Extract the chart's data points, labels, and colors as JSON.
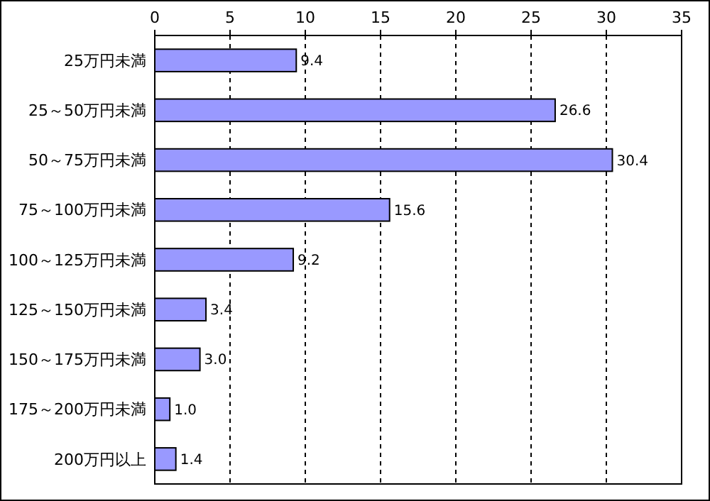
{
  "chart_data": {
    "type": "bar",
    "orientation": "horizontal",
    "categories": [
      "25万円未満",
      "25～50万円未満",
      "50～75万円未満",
      "75～100万円未満",
      "100～125万円未満",
      "125～150万円未満",
      "150～175万円未満",
      "175～200万円未満",
      "200万円以上"
    ],
    "values": [
      9.4,
      26.6,
      30.4,
      15.6,
      9.2,
      3.4,
      3.0,
      1.0,
      1.4
    ],
    "value_labels": [
      "9.4",
      "26.6",
      "30.4",
      "15.6",
      "9.2",
      "3.4",
      "3.0",
      "1.0",
      "1.4"
    ],
    "color": "#9999ff",
    "xlim": [
      0,
      35
    ],
    "xticks": [
      0,
      5,
      10,
      15,
      20,
      25,
      30,
      35
    ],
    "grid": "x"
  }
}
